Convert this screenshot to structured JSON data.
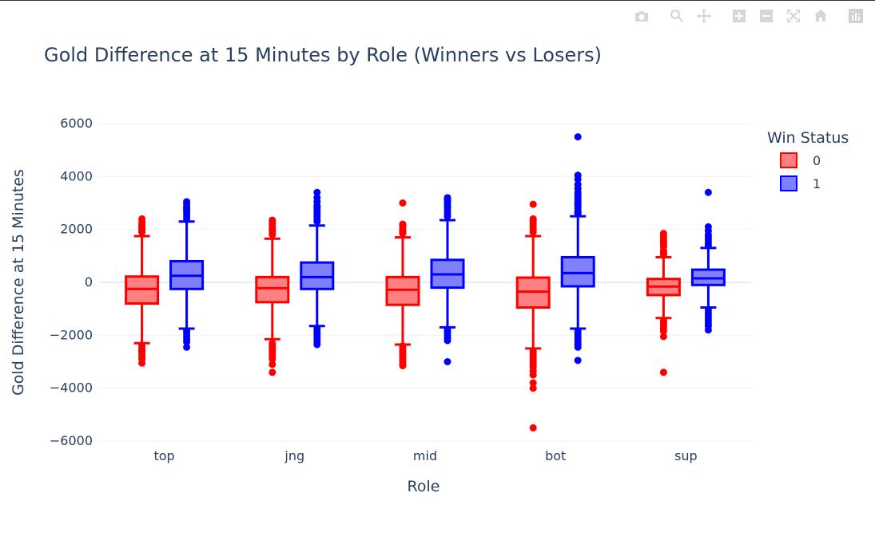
{
  "chart_data": {
    "type": "box",
    "title": "Gold Difference at 15 Minutes by Role (Winners vs Losers)",
    "xlabel": "Role",
    "ylabel": "Gold Difference at 15 Minutes",
    "ylim": [
      -6000,
      6500
    ],
    "y_ticks": [
      6000,
      4000,
      2000,
      0,
      -2000,
      -4000,
      -6000
    ],
    "y_tick_labels": [
      "6000",
      "4000",
      "2000",
      "0",
      "−2000",
      "−4000",
      "−6000"
    ],
    "categories": [
      "top",
      "jng",
      "mid",
      "bot",
      "sup"
    ],
    "grid": true,
    "legend": {
      "title": "Win Status",
      "placement": "right"
    },
    "series": [
      {
        "name": "0",
        "color": "#ff0000",
        "fill": "#ff8080",
        "boxes": [
          {
            "q1": -800,
            "median": -250,
            "q3": 220,
            "lower_fence": -2300,
            "upper_fence": 1750,
            "outliers": [
              2400,
              2300,
              2200,
              2150,
              2100,
              2050,
              2000,
              1950,
              1900,
              -2400,
              -2500,
              -2550,
              -2600,
              -2650,
              -2700,
              -2800,
              -2900,
              -3050
            ]
          },
          {
            "q1": -750,
            "median": -220,
            "q3": 200,
            "lower_fence": -2150,
            "upper_fence": 1650,
            "outliers": [
              2350,
              2300,
              2200,
              2100,
              2000,
              1950,
              1900,
              1800,
              -2300,
              -2400,
              -2500,
              -2550,
              -2600,
              -2700,
              -2800,
              -2900,
              -3100,
              -3400
            ]
          },
          {
            "q1": -850,
            "median": -280,
            "q3": 200,
            "lower_fence": -2350,
            "upper_fence": 1700,
            "outliers": [
              3000,
              2200,
              2150,
              2100,
              2000,
              1950,
              1900,
              1850,
              -2400,
              -2500,
              -2600,
              -2650,
              -2700,
              -2800,
              -2900,
              -3000,
              -3100,
              -3150
            ]
          },
          {
            "q1": -950,
            "median": -350,
            "q3": 180,
            "lower_fence": -2500,
            "upper_fence": 1750,
            "outliers": [
              2950,
              2400,
              2350,
              2300,
              2200,
              2100,
              2000,
              1900,
              -2600,
              -2700,
              -2800,
              -2900,
              -3000,
              -3100,
              -3200,
              -3350,
              -3500,
              -3800,
              -4000,
              -5500
            ]
          },
          {
            "q1": -480,
            "median": -160,
            "q3": 130,
            "lower_fence": -1350,
            "upper_fence": 950,
            "outliers": [
              1850,
              1750,
              1650,
              1550,
              1450,
              1350,
              1200,
              1100,
              1050,
              -1450,
              -1550,
              -1650,
              -1750,
              -1850,
              -2050,
              -3400
            ]
          }
        ]
      },
      {
        "name": "1",
        "color": "#0000ff",
        "fill": "#8080ff",
        "boxes": [
          {
            "q1": -250,
            "median": 250,
            "q3": 800,
            "lower_fence": -1750,
            "upper_fence": 2300,
            "outliers": [
              3050,
              2950,
              2850,
              2800,
              2750,
              2700,
              2600,
              2500,
              2400,
              -1850,
              -1950,
              -2050,
              -2150,
              -2250,
              -2450
            ]
          },
          {
            "q1": -250,
            "median": 200,
            "q3": 750,
            "lower_fence": -1650,
            "upper_fence": 2150,
            "outliers": [
              3400,
              3200,
              3050,
              2900,
              2850,
              2800,
              2700,
              2600,
              2500,
              2400,
              2300,
              -1750,
              -1850,
              -1950,
              -2050,
              -2150,
              -2250,
              -2350
            ]
          },
          {
            "q1": -200,
            "median": 300,
            "q3": 850,
            "lower_fence": -1700,
            "upper_fence": 2350,
            "outliers": [
              3200,
              3150,
              3100,
              3050,
              2950,
              2850,
              2800,
              2700,
              2600,
              2500,
              -1800,
              -1900,
              -2000,
              -2100,
              -2200,
              -3000
            ]
          },
          {
            "q1": -150,
            "median": 350,
            "q3": 950,
            "lower_fence": -1750,
            "upper_fence": 2500,
            "outliers": [
              5500,
              4050,
              3900,
              3700,
              3550,
              3400,
              3300,
              3200,
              3100,
              3000,
              2950,
              2900,
              2800,
              2700,
              2650,
              2600,
              -1850,
              -1950,
              -2050,
              -2150,
              -2250,
              -2350,
              -2450,
              -2950
            ]
          },
          {
            "q1": -100,
            "median": 150,
            "q3": 480,
            "lower_fence": -950,
            "upper_fence": 1300,
            "outliers": [
              3400,
              2100,
              1950,
              1800,
              1700,
              1600,
              1500,
              1400,
              -1050,
              -1150,
              -1250,
              -1350,
              -1450,
              -1550,
              -1650,
              -1800
            ]
          }
        ]
      }
    ]
  },
  "modebar": {
    "icons": [
      "camera-icon",
      "zoom-icon",
      "pan-icon",
      "zoom-in-icon",
      "zoom-out-icon",
      "autoscale-icon",
      "home-icon",
      "plotly-logo-icon"
    ]
  }
}
